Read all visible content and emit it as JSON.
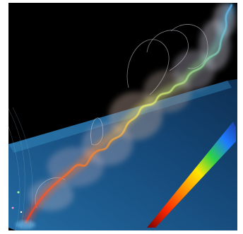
{
  "image": {
    "background": "#000000",
    "surround": "#ffffff",
    "plane_color": "#1a5a96",
    "plane_edge_color": "#3fa0d8",
    "glow_colors": [
      "#ff3b1a",
      "#ff9a2a",
      "#f4f06a",
      "#8fe08a",
      "#59b8ff"
    ],
    "colorbar_colors": [
      "#7a0000",
      "#ff2a00",
      "#ff9900",
      "#ffe600",
      "#2bd14a",
      "#1e7bff",
      "#1a3ea8"
    ]
  }
}
